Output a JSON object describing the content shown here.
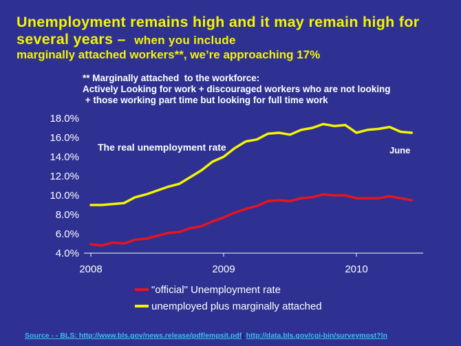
{
  "slide": {
    "title_main": "Unemployment remains high and it may remain high for several years –",
    "title_tail": "when you include",
    "title_line3": "marginally attached workers**, we’re approaching 17%",
    "note": "** Marginally attached  to the workforce:\nActively Looking for work + discouraged workers who are not looking\n + those working part time but looking for full time work",
    "footer_link1": "Source - - BLS:  http://www.bls.gov/news.release/pdf/empsit.pdf",
    "footer_sep": ";  ",
    "footer_link2": "http://data.bls.gov/cgi-bin/surveymost?ln"
  },
  "colors": {
    "background": "#2e3192",
    "title": "#f5f500",
    "official": "#e8141c",
    "marginal": "#f5f500",
    "link": "#3cc0f0"
  },
  "chart_data": {
    "type": "line",
    "annotations": [
      "The real unemployment rate",
      "June"
    ],
    "ylim": [
      4.0,
      18.0
    ],
    "y_ticks": [
      "4.0%",
      "6.0%",
      "8.0%",
      "10.0%",
      "12.0%",
      "14.0%",
      "16.0%",
      "18.0%"
    ],
    "x_ticks": [
      "2008",
      "2009",
      "2010"
    ],
    "x": [
      "2008-01",
      "2008-02",
      "2008-03",
      "2008-04",
      "2008-05",
      "2008-06",
      "2008-07",
      "2008-08",
      "2008-09",
      "2008-10",
      "2008-11",
      "2008-12",
      "2009-01",
      "2009-02",
      "2009-03",
      "2009-04",
      "2009-05",
      "2009-06",
      "2009-07",
      "2009-08",
      "2009-09",
      "2009-10",
      "2009-11",
      "2009-12",
      "2010-01",
      "2010-02",
      "2010-03",
      "2010-04",
      "2010-05",
      "2010-06"
    ],
    "series": [
      {
        "name": "\"official\" Unemployment rate",
        "color": "#e8141c",
        "values": [
          4.9,
          4.8,
          5.1,
          5.0,
          5.4,
          5.5,
          5.8,
          6.1,
          6.2,
          6.6,
          6.8,
          7.3,
          7.7,
          8.2,
          8.6,
          8.9,
          9.4,
          9.5,
          9.4,
          9.7,
          9.8,
          10.1,
          10.0,
          10.0,
          9.7,
          9.7,
          9.7,
          9.9,
          9.7,
          9.5
        ]
      },
      {
        "name": "unemployed plus marginally attached",
        "color": "#f5f500",
        "values": [
          9.0,
          9.0,
          9.1,
          9.2,
          9.8,
          10.1,
          10.5,
          10.9,
          11.2,
          11.9,
          12.6,
          13.5,
          14.0,
          14.9,
          15.6,
          15.8,
          16.4,
          16.5,
          16.3,
          16.8,
          17.0,
          17.4,
          17.2,
          17.3,
          16.5,
          16.8,
          16.9,
          17.1,
          16.6,
          16.5
        ]
      }
    ]
  }
}
